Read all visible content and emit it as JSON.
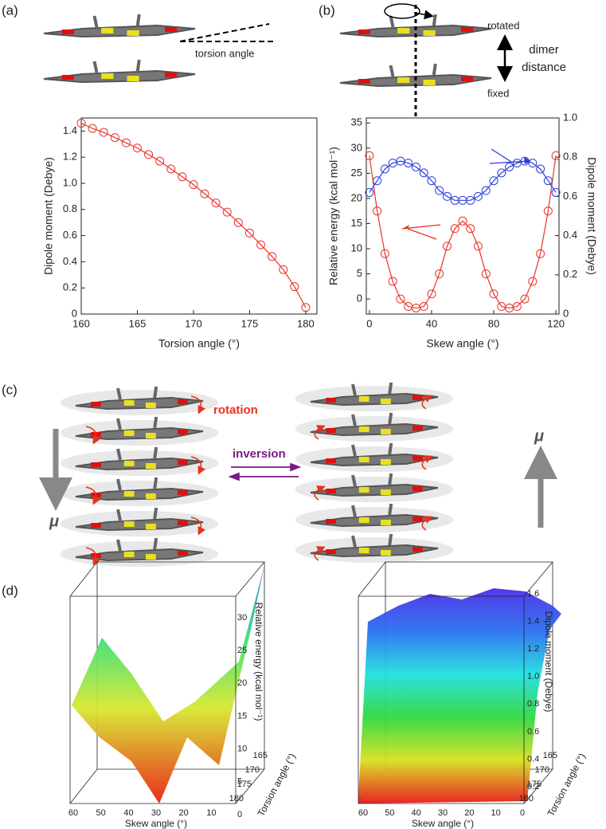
{
  "chart_data": [
    {
      "type": "line",
      "x_label": "Torsion angle (°)",
      "y_label": "Dipole moment (Debye)",
      "x": [
        160,
        161,
        162,
        163,
        164,
        165,
        166,
        167,
        168,
        169,
        170,
        171,
        172,
        173,
        174,
        175,
        176,
        177,
        178,
        179,
        180
      ],
      "series": [
        {
          "color": "#e8322a",
          "values": [
            1.46,
            1.42,
            1.39,
            1.35,
            1.31,
            1.27,
            1.22,
            1.17,
            1.11,
            1.05,
            0.99,
            0.92,
            0.85,
            0.78,
            0.7,
            0.62,
            0.53,
            0.44,
            0.34,
            0.21,
            0.05
          ]
        }
      ],
      "xlim": [
        160,
        181
      ],
      "ylim": [
        0,
        1.5
      ],
      "xticks": [
        160,
        165,
        170,
        175,
        180
      ],
      "yticks": [
        0,
        0.2,
        0.4,
        0.6,
        0.8,
        {
          "value": 1,
          "label": "1.0"
        },
        1.2,
        1.4
      ]
    },
    {
      "type": "line",
      "x_label": "Skew angle (°)",
      "y_label": "Relative energy (kcal mol⁻¹)",
      "y2_label": "Dipole moment (Debye)",
      "x": [
        0,
        5,
        10,
        15,
        20,
        25,
        30,
        35,
        40,
        45,
        50,
        55,
        60,
        65,
        70,
        75,
        80,
        85,
        90,
        95,
        100,
        105,
        110,
        115,
        120
      ],
      "series": [
        {
          "color": "#e8322a",
          "values": [
            28.5,
            17.5,
            9,
            3.5,
            0,
            -1.5,
            -1.8,
            -1.5,
            1,
            5,
            10.5,
            14,
            15.5,
            14,
            10.5,
            5,
            1,
            -1.5,
            -1.8,
            -1.5,
            0,
            3.5,
            9,
            17.5,
            28.5
          ]
        },
        {
          "color": "#2b3fd6",
          "axis": "y2",
          "values": [
            0.62,
            0.68,
            0.74,
            0.77,
            0.78,
            0.77,
            0.75,
            0.72,
            0.68,
            0.63,
            0.6,
            0.58,
            0.58,
            0.58,
            0.6,
            0.63,
            0.68,
            0.72,
            0.75,
            0.77,
            0.78,
            0.77,
            0.74,
            0.68,
            0.62
          ]
        }
      ],
      "xlim": [
        -2,
        122
      ],
      "ylim": [
        -3,
        36
      ],
      "xticks": [
        0,
        40,
        80,
        120
      ],
      "yticks": [
        0,
        5,
        10,
        15,
        20,
        25,
        30,
        35
      ],
      "y2lim": [
        0,
        1.0
      ],
      "y2ticks": [
        0,
        0.2,
        0.4,
        0.6,
        0.8,
        {
          "value": 1,
          "label": "1.0"
        }
      ]
    }
  ],
  "figure": {
    "labels": [
      "(a)",
      "(b)",
      "(c)",
      "(d)"
    ],
    "a": {
      "torsion": "torsion angle"
    },
    "b": {
      "rotated": "rotated",
      "dimer_distance": [
        "dimer",
        "distance"
      ],
      "fixed": "fixed"
    },
    "c": {
      "rotation": "rotation",
      "inversion": "inversion",
      "mu": [
        "μ",
        "μ"
      ]
    },
    "d": {
      "left": {
        "z_label": "Relative energy (kcal mol⁻¹)",
        "y_label": "Torsion angle (°)",
        "x_label": "Skew angle (°)",
        "z_ticks": [
          "30",
          "25",
          "20",
          "15",
          "10",
          "5",
          "0"
        ],
        "y_ticks": [
          "165",
          "170",
          "175",
          "180"
        ],
        "x_ticks": [
          "60",
          "50",
          "40",
          "30",
          "20",
          "10"
        ]
      },
      "right": {
        "z_label": "Dipole moment (Debye)",
        "y_label": "Torsion angle (°)",
        "x_label": "Skew angle (°)",
        "z_ticks": [
          "1.6",
          "1.4",
          "1.2",
          "1.0",
          "0.8",
          "0.6",
          "0.4",
          "0.2"
        ],
        "y_ticks": [
          "165",
          "170",
          "175",
          "180"
        ],
        "x_ticks": [
          "60",
          "50",
          "40",
          "30",
          "20",
          "10",
          "0"
        ]
      }
    }
  }
}
